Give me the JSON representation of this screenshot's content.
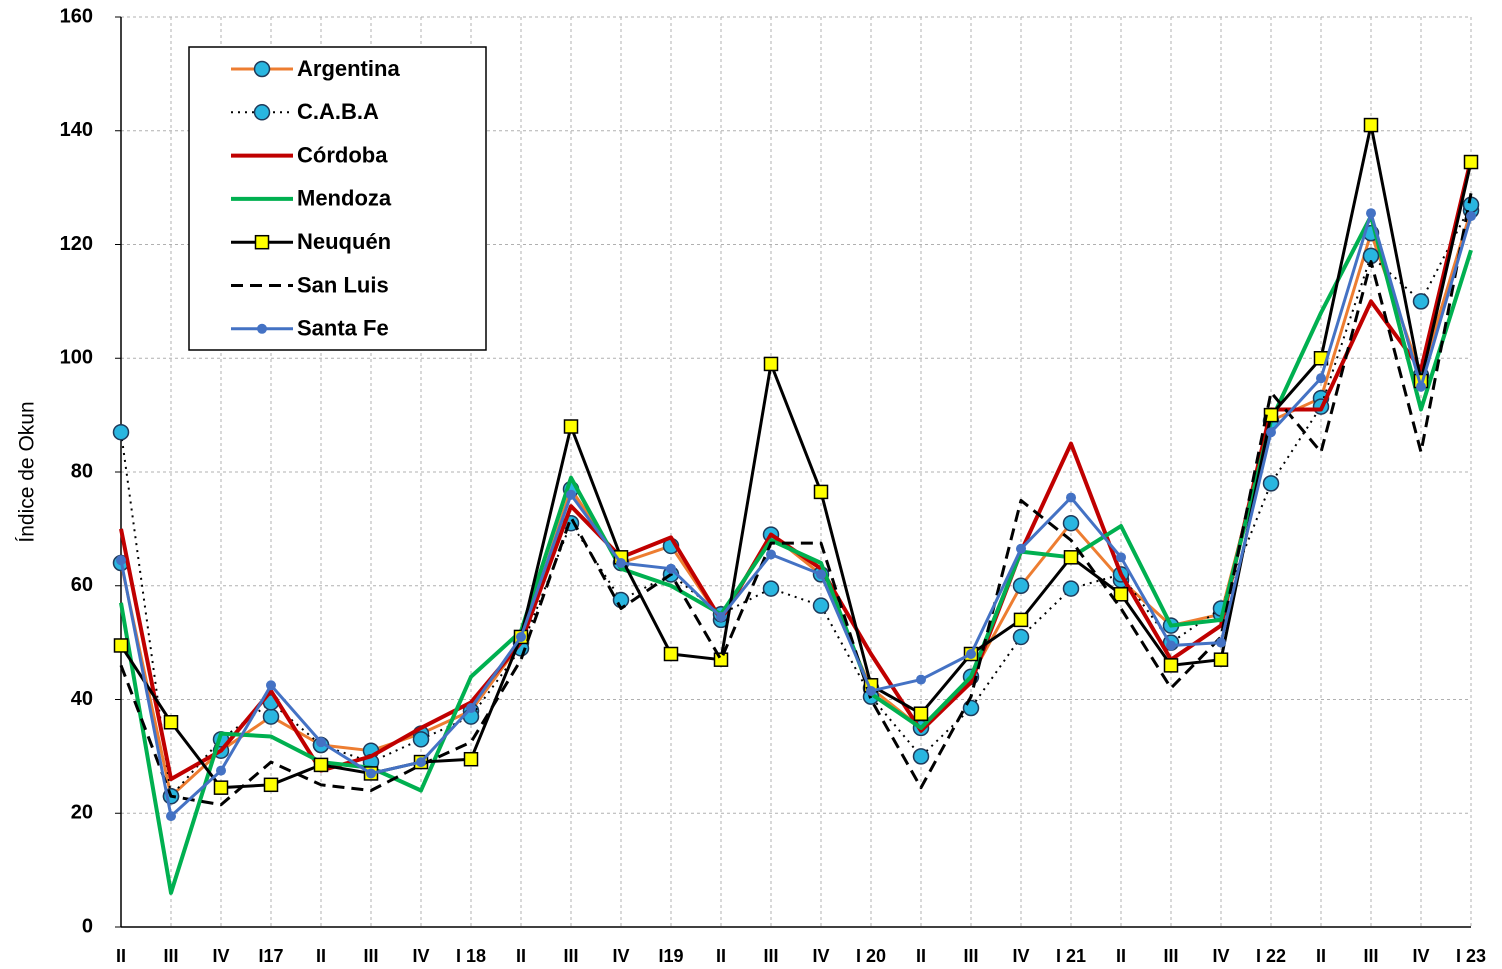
{
  "chart_data": {
    "type": "line",
    "y_label": "Índice de Okun",
    "categories": [
      "II",
      "III",
      "IV",
      "I17",
      "II",
      "III",
      "IV",
      "I 18",
      "II",
      "III",
      "IV",
      "I19",
      "II",
      "III",
      "IV",
      "I 20",
      "II",
      "III",
      "IV",
      "I 21",
      "II",
      "III",
      "IV",
      "I 22",
      "II",
      "III",
      "IV",
      "I 23"
    ],
    "ylim": [
      0,
      160
    ],
    "yticks": [
      0,
      20,
      40,
      60,
      80,
      100,
      120,
      140,
      160
    ],
    "grid": true,
    "legend": "upper-left",
    "series": [
      {
        "name": "Argentina",
        "color": "#ed7d31",
        "width": 3,
        "dash": "solid",
        "marker": "circle",
        "marker_color": "#29b6e0",
        "values": [
          64,
          23,
          31,
          37,
          32,
          31,
          34,
          38,
          50,
          77,
          64,
          67,
          54,
          69,
          62,
          42,
          35,
          44,
          60,
          71,
          61,
          53,
          55,
          89,
          93,
          122,
          97,
          126
        ]
      },
      {
        "name": "C.A.B.A",
        "color": "#000000",
        "width": 2,
        "dash": "dotted",
        "marker": "circle",
        "marker_color": "#29b6e0",
        "values": [
          87,
          23,
          33,
          39.5,
          32,
          29,
          33,
          37,
          49,
          71,
          57.5,
          62,
          55,
          59.5,
          56.5,
          40.5,
          30,
          38.5,
          51,
          59.5,
          62,
          50,
          56,
          78,
          91.5,
          118,
          110,
          127
        ]
      },
      {
        "name": "Córdoba",
        "color": "#c00000",
        "width": 4,
        "dash": "solid",
        "marker": "none",
        "marker_color": "#c00000",
        "values": [
          70,
          26,
          31,
          41.5,
          27.5,
          30,
          35,
          39.5,
          50,
          74,
          65,
          68.5,
          54,
          69,
          63,
          48,
          34.5,
          43,
          66,
          85,
          62,
          47,
          53,
          91,
          91,
          110,
          98,
          135
        ]
      },
      {
        "name": "Mendoza",
        "color": "#00b050",
        "width": 4,
        "dash": "solid",
        "marker": "none",
        "marker_color": "#00b050",
        "values": [
          57,
          6,
          34,
          33.5,
          29,
          28,
          24,
          44,
          52,
          79,
          63,
          60,
          55,
          68,
          64,
          41,
          35,
          44,
          66,
          65,
          70.5,
          53,
          54,
          89,
          108,
          125,
          91,
          119
        ]
      },
      {
        "name": "Neuquén",
        "color": "#000000",
        "width": 3,
        "dash": "solid",
        "marker": "square",
        "marker_color": "#ffff00",
        "values": [
          49.5,
          36,
          24.5,
          25,
          28.5,
          27,
          29,
          29.5,
          51,
          88,
          65,
          48,
          47,
          99,
          76.5,
          42.5,
          37.5,
          48,
          54,
          65,
          58.5,
          46,
          47,
          90,
          100,
          141,
          96,
          134.5
        ]
      },
      {
        "name": "San Luis",
        "color": "#000000",
        "width": 3,
        "dash": "dashed",
        "marker": "none",
        "marker_color": "#000000",
        "values": [
          46,
          23,
          21.5,
          29,
          25,
          24,
          28.5,
          32.5,
          47,
          72,
          56,
          62,
          47,
          67.5,
          67.5,
          40,
          24.5,
          40.5,
          75,
          68,
          56,
          42,
          51,
          94,
          83.5,
          117,
          83.5,
          129
        ]
      },
      {
        "name": "Santa Fe",
        "color": "#4472c4",
        "width": 3,
        "dash": "solid",
        "marker": "dot",
        "marker_color": "#4472c4",
        "values": [
          64.5,
          19.5,
          27.5,
          42.5,
          32.5,
          27,
          29,
          38.5,
          51,
          76,
          64,
          63,
          54.5,
          65.5,
          62,
          41.5,
          43.5,
          48,
          66.5,
          75.5,
          65,
          49.5,
          50,
          87,
          96.5,
          125.5,
          95,
          125
        ]
      }
    ]
  }
}
